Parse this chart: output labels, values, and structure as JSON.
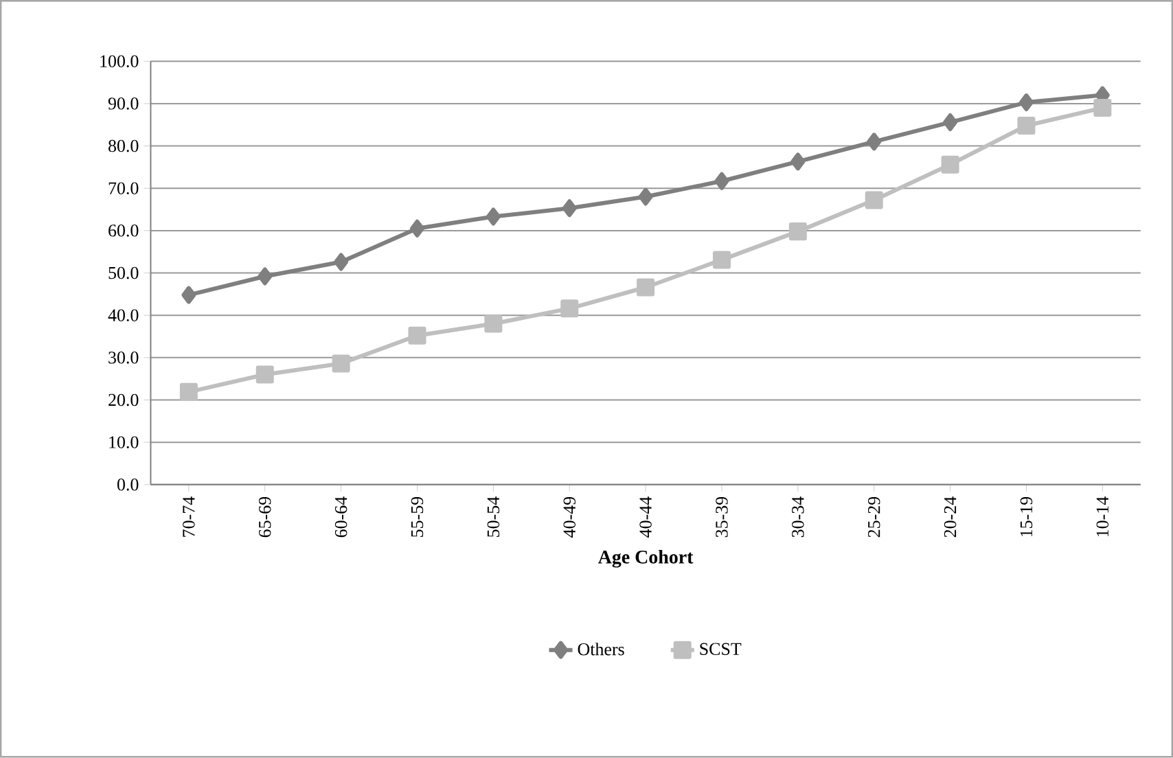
{
  "chart_data": {
    "type": "line",
    "xlabel": "Age Cohort",
    "categories": [
      "70-74",
      "65-69",
      "60-64",
      "55-59",
      "50-54",
      "40-49",
      "40-44",
      "35-39",
      "30-34",
      "25-29",
      "20-24",
      "15-19",
      "10-14"
    ],
    "series": [
      {
        "name": "Others",
        "color": "#7f7f7f",
        "marker": "diamond",
        "values": [
          44.8,
          49.2,
          52.6,
          60.5,
          63.3,
          65.3,
          68.0,
          71.7,
          76.3,
          81.0,
          85.6,
          90.3,
          92.0
        ]
      },
      {
        "name": "SCST",
        "color": "#bfbfbf",
        "marker": "square",
        "values": [
          21.9,
          26.0,
          28.6,
          35.2,
          38.0,
          41.6,
          46.6,
          53.1,
          59.8,
          67.2,
          75.6,
          84.8,
          89.0
        ]
      }
    ],
    "ylim": [
      0,
      100
    ],
    "yticks": [
      {
        "value": 0,
        "label": "0.0"
      },
      {
        "value": 10,
        "label": "10.0"
      },
      {
        "value": 20,
        "label": "20.0"
      },
      {
        "value": 30,
        "label": "30.0"
      },
      {
        "value": 40,
        "label": "40.0"
      },
      {
        "value": 50,
        "label": "50.0"
      },
      {
        "value": 60,
        "label": "60.0"
      },
      {
        "value": 70,
        "label": "70.0"
      },
      {
        "value": 80,
        "label": "80.0"
      },
      {
        "value": 90,
        "label": "90.0"
      },
      {
        "value": 100,
        "label": "100.0"
      }
    ],
    "grid": "y",
    "legend": "bottom"
  }
}
